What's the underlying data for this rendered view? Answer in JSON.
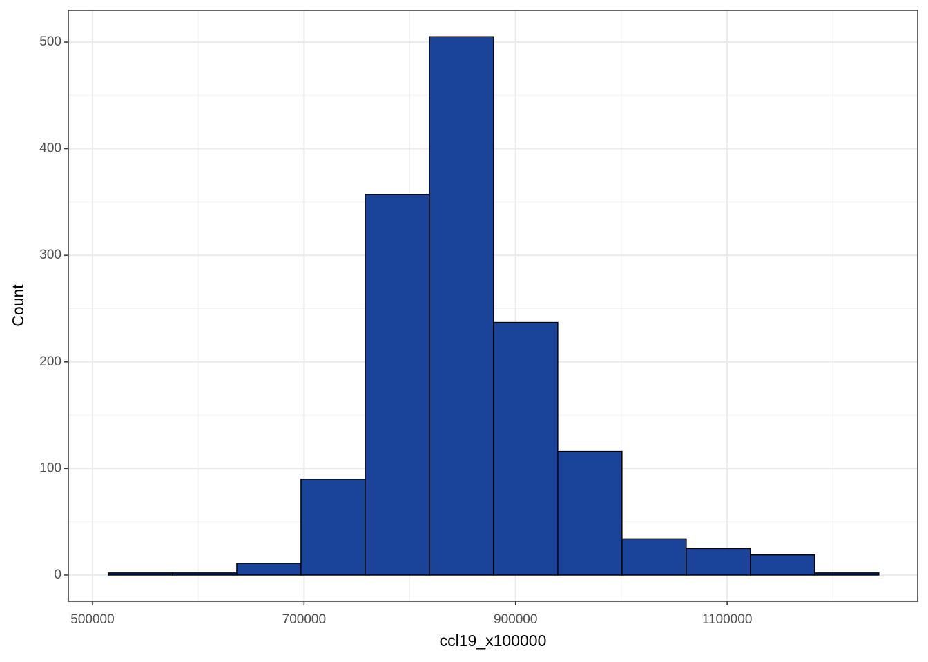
{
  "chart_data": {
    "type": "histogram",
    "x_label": "ccl19_x100000",
    "y_label": "Count",
    "bins": [
      515000,
      575700,
      636400,
      697100,
      757800,
      818500,
      879200,
      939900,
      1000600,
      1061300,
      1122000,
      1182700,
      1243400
    ],
    "values": [
      2,
      2,
      11,
      90,
      357,
      505,
      237,
      116,
      34,
      25,
      19,
      2
    ],
    "color": "#1a4499",
    "edge_color": "#000000",
    "xlim": [
      477160,
      1280100
    ],
    "ylim": [
      -24.6,
      529.75
    ],
    "xticks": [
      500000,
      700000,
      900000,
      1100000
    ],
    "yticks": [
      0,
      100,
      200,
      300,
      400,
      500
    ],
    "grid": true,
    "minor_grid": true
  }
}
